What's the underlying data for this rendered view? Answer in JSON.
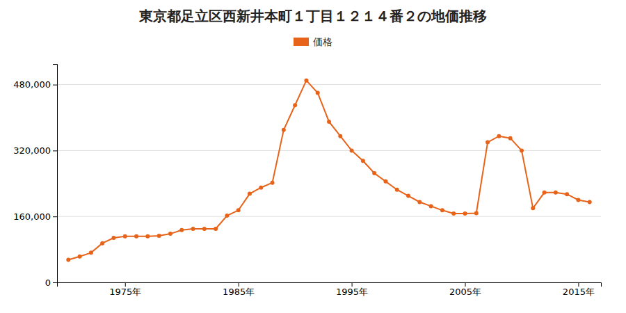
{
  "chart_data": {
    "type": "line",
    "title": "東京都足立区西新井本町１丁目１２１４番２の地価推移",
    "x": [
      1970,
      1971,
      1972,
      1973,
      1974,
      1975,
      1976,
      1977,
      1978,
      1979,
      1980,
      1981,
      1982,
      1983,
      1984,
      1985,
      1986,
      1987,
      1988,
      1989,
      1990,
      1991,
      1992,
      1993,
      1994,
      1995,
      1996,
      1997,
      1998,
      1999,
      2000,
      2001,
      2002,
      2003,
      2004,
      2005,
      2006,
      2007,
      2008,
      2009,
      2010,
      2011,
      2012,
      2013,
      2014,
      2015,
      2016
    ],
    "series": [
      {
        "name": "価格",
        "color": "#e8631a",
        "marker": "circle",
        "line_style": "solid",
        "values": [
          55000,
          63000,
          72000,
          95000,
          108000,
          112000,
          112000,
          112000,
          113000,
          118000,
          127000,
          130000,
          130000,
          130000,
          162000,
          175000,
          215000,
          230000,
          242000,
          370000,
          430000,
          490000,
          460000,
          390000,
          355000,
          320000,
          295000,
          265000,
          245000,
          225000,
          210000,
          195000,
          185000,
          175000,
          167000,
          167000,
          168000,
          340000,
          355000,
          350000,
          320000,
          180000,
          218000,
          218000,
          214000,
          200000,
          195000
        ]
      }
    ],
    "xlim": [
      1969,
      2017
    ],
    "xticks": [
      {
        "value": 1975,
        "label": "1975年"
      },
      {
        "value": 1985,
        "label": "1985年"
      },
      {
        "value": 1995,
        "label": "1995年"
      },
      {
        "value": 2005,
        "label": "2005年"
      },
      {
        "value": 2015,
        "label": "2015年"
      }
    ],
    "ylim": [
      0,
      530000
    ],
    "yticks": [
      0,
      {
        "value": 160000,
        "label": "160,000"
      },
      {
        "value": 320000,
        "label": "320,000"
      },
      {
        "value": 480000,
        "label": "480,000"
      }
    ],
    "grid": "y",
    "legend": "top"
  }
}
